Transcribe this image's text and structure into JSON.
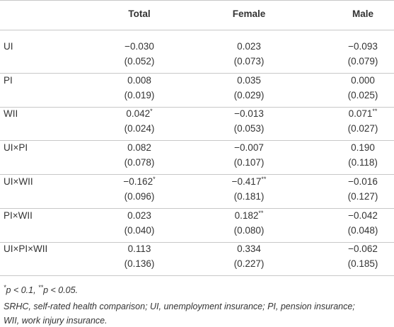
{
  "table": {
    "header": [
      "Total",
      "Female",
      "Male"
    ],
    "rows": [
      {
        "label": "UI",
        "cells": [
          {
            "coef": "−0.030",
            "se": "(0.052)"
          },
          {
            "coef": "0.023",
            "se": "(0.073)"
          },
          {
            "coef": "−0.093",
            "se": "(0.079)"
          }
        ]
      },
      {
        "label": "PI",
        "cells": [
          {
            "coef": "0.008",
            "se": "(0.019)"
          },
          {
            "coef": "0.035",
            "se": "(0.029)"
          },
          {
            "coef": "0.000",
            "se": "(0.025)"
          }
        ]
      },
      {
        "label": "WII",
        "cells": [
          {
            "coef": "0.042",
            "stars": "*",
            "se": "(0.024)"
          },
          {
            "coef": "−0.013",
            "se": "(0.053)"
          },
          {
            "coef": "0.071",
            "stars": "**",
            "se": "(0.027)"
          }
        ]
      },
      {
        "label": "UI×PI",
        "cells": [
          {
            "coef": "0.082",
            "se": "(0.078)"
          },
          {
            "coef": "−0.007",
            "se": "(0.107)"
          },
          {
            "coef": "0.190",
            "se": "(0.118)"
          }
        ]
      },
      {
        "label": "UI×WII",
        "cells": [
          {
            "coef": "−0.162",
            "stars": "*",
            "se": "(0.096)"
          },
          {
            "coef": "−0.417",
            "stars": "**",
            "se": "(0.181)"
          },
          {
            "coef": "−0.016",
            "se": "(0.127)"
          }
        ]
      },
      {
        "label": "PI×WII",
        "cells": [
          {
            "coef": "0.023",
            "se": "(0.040)"
          },
          {
            "coef": "0.182",
            "stars": "**",
            "se": "(0.080)"
          },
          {
            "coef": "−0.042",
            "se": "(0.048)"
          }
        ]
      },
      {
        "label": "UI×PI×WII",
        "cells": [
          {
            "coef": "0.113",
            "se": "(0.136)"
          },
          {
            "coef": "0.334",
            "se": "(0.227)"
          },
          {
            "coef": "−0.062",
            "se": "(0.185)"
          }
        ]
      }
    ]
  },
  "notes": {
    "significance": [
      "*",
      "p < 0.1, ",
      "**",
      "p < 0.05."
    ],
    "abbreviations": [
      "SRHC, self-rated health comparison; UI, unemployment insurance; PI, pension insurance;",
      "WII, work injury insurance."
    ]
  }
}
